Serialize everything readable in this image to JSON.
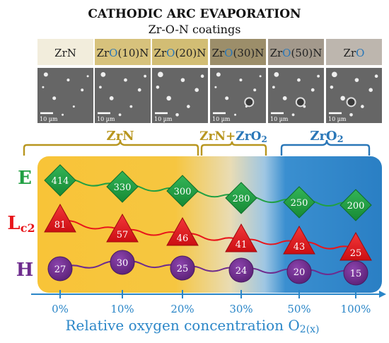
{
  "title": "CATHODIC ARC EVAPORATION",
  "subtitle": "Zr-O-N coatings",
  "samples": [
    {
      "pre": "Zr",
      "o": "",
      "post": "N",
      "color": "#f2eddc"
    },
    {
      "pre": "Zr",
      "o": "O",
      "post": "(10)N",
      "color": "#d7c27c"
    },
    {
      "pre": "Zr",
      "o": "O",
      "post": "(20)N",
      "color": "#d2bd74"
    },
    {
      "pre": "Zr",
      "o": "O",
      "post": "(30)N",
      "color": "#9c8e6a"
    },
    {
      "pre": "Zr",
      "o": "O",
      "post": "(50)N",
      "color": "#a3998c"
    },
    {
      "pre": "Zr",
      "o": "O",
      "post": "",
      "color": "#bdb6ae"
    }
  ],
  "scale_label": "10 µm",
  "phases": [
    {
      "label": "ZrN",
      "color": "#b8961f"
    },
    {
      "label": "ZrN+",
      "label2": "ZrO",
      "sub": "2",
      "color": "#b8961f",
      "color2": "#2a77b8"
    },
    {
      "label": "ZrO",
      "sub": "2",
      "color": "#2a77b8"
    }
  ],
  "rows": {
    "E": {
      "label": "E",
      "color": "#21a043"
    },
    "Lc2": {
      "label": "L",
      "sub": "c2",
      "color": "#e8161b"
    },
    "H": {
      "label": "H",
      "color": "#6e2c8e"
    }
  },
  "chart_data": {
    "type": "table",
    "x": [
      "0%",
      "10%",
      "20%",
      "30%",
      "50%",
      "100%"
    ],
    "xlabel": "Relative oxygen concentration O",
    "xlabel_sub": "2(x)",
    "series": [
      {
        "name": "E",
        "values": [
          414,
          330,
          300,
          280,
          250,
          200
        ]
      },
      {
        "name": "Lc2",
        "values": [
          81,
          57,
          46,
          41,
          43,
          25
        ]
      },
      {
        "name": "H",
        "values": [
          27,
          30,
          25,
          24,
          20,
          15
        ]
      }
    ]
  },
  "colors": {
    "panel_gold": "#f7c23a",
    "panel_blue": "#2f87cc",
    "axis": "#2a86c8",
    "tick_text": "#2a86c8",
    "green": "#21a043",
    "red": "#e8161b",
    "purple": "#6e2c8e"
  }
}
